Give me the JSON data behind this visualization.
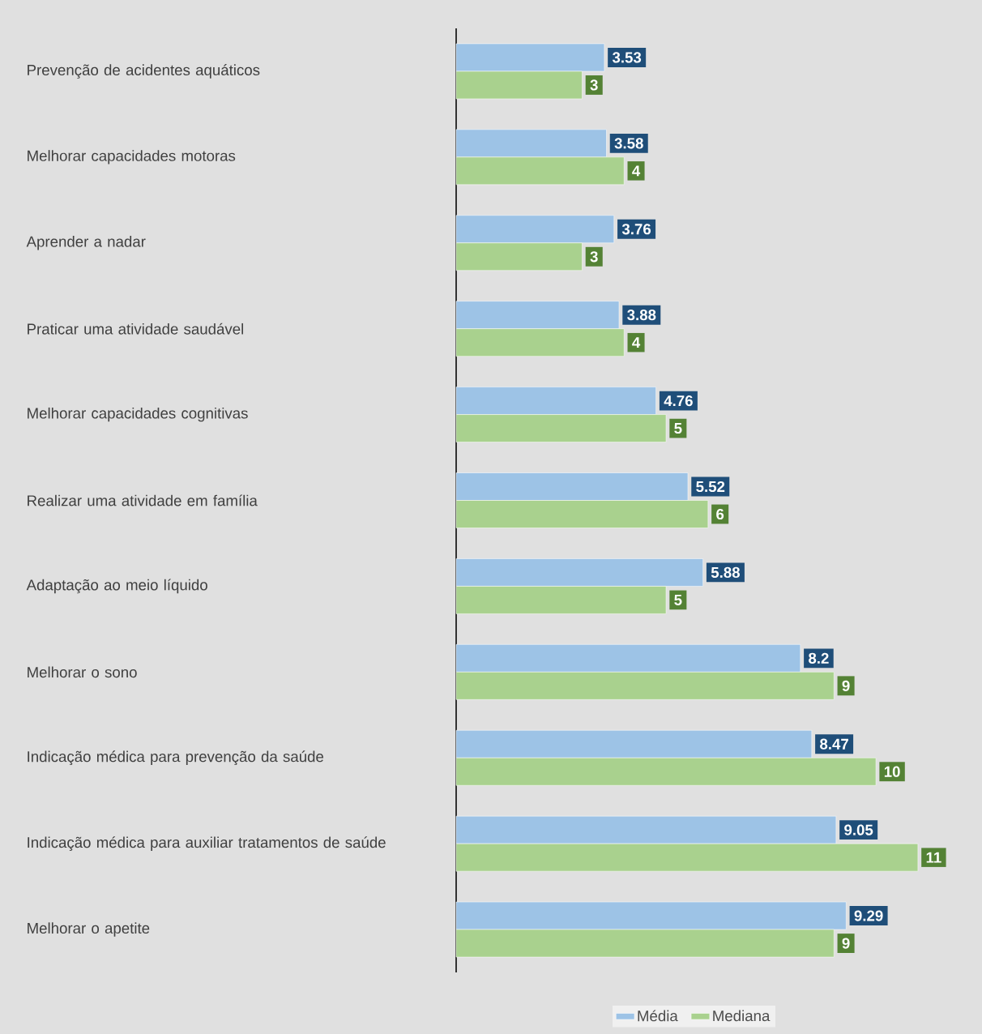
{
  "chart_data": {
    "type": "bar",
    "orientation": "horizontal",
    "categories": [
      "Prevenção de acidentes aquáticos",
      "Melhorar capacidades motoras",
      "Aprender a nadar",
      "Praticar uma atividade saudável",
      "Melhorar capacidades cognitivas",
      "Realizar uma atividade em família",
      "Adaptação ao meio líquido",
      "Melhorar o sono",
      "Indicação médica para prevenção da saúde",
      "Indicação médica para auxiliar tratamentos de saúde",
      "Melhorar o apetite"
    ],
    "series": [
      {
        "name": "Média",
        "color": "#9dc3e6",
        "values": [
          3.53,
          3.58,
          3.76,
          3.88,
          4.76,
          5.52,
          5.88,
          8.2,
          8.47,
          9.05,
          9.29
        ]
      },
      {
        "name": "Mediana",
        "color": "#a9d18e",
        "values": [
          3,
          4,
          3,
          4,
          5,
          6,
          5,
          9,
          10,
          11,
          9
        ]
      }
    ],
    "data_labels": true,
    "legend": "bottom"
  }
}
